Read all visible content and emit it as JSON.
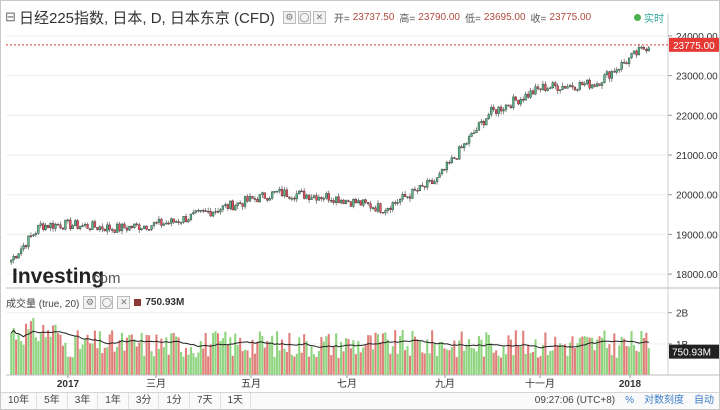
{
  "header": {
    "title": "日经225指数, 日本, D, 日本东京 (CFD)",
    "icons": [
      "settings-icon",
      "circle-icon",
      "close-icon"
    ],
    "open_label": "开=",
    "open": "23737.50",
    "high_label": "高=",
    "high": "23790.00",
    "low_label": "低=",
    "low": "23695.00",
    "close_label": "收=",
    "close": "23775.00",
    "realtime": "实时"
  },
  "logo": {
    "text": "Investing",
    "suffix": ".com"
  },
  "volume_legend": {
    "label": "成交量 (true, 20)",
    "value": "750.93M"
  },
  "toolbar": {
    "ranges": [
      "10年",
      "5年",
      "3年",
      "1年",
      "3分",
      "1分",
      "7天",
      "1天"
    ],
    "time": "09:27:06 (UTC+8)",
    "percent": "%",
    "log": "对数刻度",
    "auto": "自动"
  },
  "colors": {
    "up": "#53b987",
    "down": "#eb4d5c",
    "vol_up": "#8ed47f",
    "vol_down": "#e07f79",
    "accent": "#26a69a"
  },
  "chart_data": [
    {
      "type": "candlestick",
      "title": "日经225指数, 日本, D, 日本东京 (CFD)",
      "x_tick_labels": [
        "2017",
        "三月",
        "五月",
        "七月",
        "九月",
        "十一月",
        "2018"
      ],
      "y_tick_labels": [
        "18000.00",
        "19000.00",
        "20000.00",
        "21000.00",
        "22000.00",
        "23000.00",
        "24000.00"
      ],
      "ylim": [
        17650,
        24350
      ],
      "last_price_label": "23775.00",
      "monthly_close": [
        {
          "month": "2017-01",
          "close": 19200
        },
        {
          "month": "2017-02",
          "close": 19250
        },
        {
          "month": "2017-03",
          "close": 19150
        },
        {
          "month": "2017-04",
          "close": 19300
        },
        {
          "month": "2017-05",
          "close": 19680
        },
        {
          "month": "2017-06",
          "close": 20050
        },
        {
          "month": "2017-07",
          "close": 19950
        },
        {
          "month": "2017-08",
          "close": 19650
        },
        {
          "month": "2017-09",
          "close": 20350
        },
        {
          "month": "2017-10",
          "close": 22050
        },
        {
          "month": "2017-11",
          "close": 22700
        },
        {
          "month": "2017-12",
          "close": 22800
        },
        {
          "month": "2018-01",
          "close": 23775
        }
      ]
    },
    {
      "type": "bar",
      "title": "成交量 (true, 20)",
      "y_tick_labels": [
        "2B",
        "1B"
      ],
      "last_value_label": "750.93M"
    }
  ]
}
